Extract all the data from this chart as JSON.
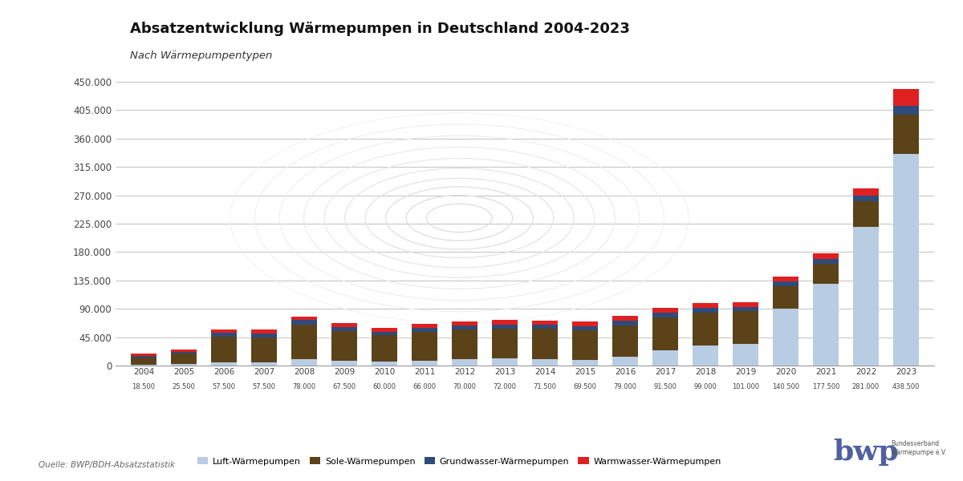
{
  "title": "Absatzentwicklung Wärmepumpen in Deutschland 2004-2023",
  "subtitle": "Nach Wärmepumpentypen",
  "source": "Quelle: BWP/BDH-Absatzstatistik",
  "years": [
    "2004",
    "2005",
    "2006",
    "2007",
    "2008",
    "2009",
    "2010",
    "2011",
    "2012",
    "2013",
    "2014",
    "2015",
    "2016",
    "2017",
    "2018",
    "2019",
    "2020",
    "2021",
    "2022",
    "2023"
  ],
  "totals_labels": [
    "18.500",
    "25.500",
    "57.500",
    "57.500",
    "78.000",
    "67.500",
    "60.000",
    "66.000",
    "70.000",
    "72.000",
    "71.500",
    "69.500",
    "79.000",
    "91.500",
    "99.000",
    "101.000",
    "140.500",
    "177.500",
    "281.000",
    "438.500"
  ],
  "luft": [
    1000,
    2000,
    5000,
    5000,
    10000,
    8000,
    6000,
    8000,
    10000,
    11000,
    10000,
    9000,
    14000,
    24000,
    32000,
    34000,
    90000,
    130000,
    220000,
    336000
  ],
  "sole": [
    12000,
    17000,
    41000,
    40000,
    55000,
    47000,
    42000,
    45000,
    47000,
    47000,
    48000,
    47000,
    50000,
    52000,
    52000,
    52000,
    36000,
    32000,
    40000,
    62000
  ],
  "grundwasser": [
    2500,
    3000,
    6000,
    6000,
    7000,
    6500,
    6000,
    6500,
    6000,
    6500,
    6500,
    6500,
    7000,
    7500,
    7000,
    7000,
    7000,
    7000,
    9000,
    14000
  ],
  "warmwasser": [
    3000,
    3500,
    5500,
    6500,
    6000,
    6000,
    6000,
    6500,
    7000,
    7500,
    7000,
    7000,
    8000,
    8000,
    8000,
    8000,
    7500,
    8500,
    12000,
    26500
  ],
  "color_luft": "#b8cce4",
  "color_sole": "#5c4218",
  "color_grundwasser": "#2e4b7a",
  "color_warmwasser": "#e02020",
  "legend_labels": [
    "Luft-Wärmepumpen",
    "Sole-Wärmepumpen",
    "Grundwasser-Wärmepumpen",
    "Warmwasser-Wärmepumpen"
  ],
  "yticks": [
    0,
    45000,
    90000,
    135000,
    180000,
    225000,
    270000,
    315000,
    360000,
    405000,
    450000
  ],
  "ytick_labels": [
    "0",
    "45.000",
    "90.000",
    "135.000",
    "180.000",
    "225.000",
    "270.000",
    "315.000",
    "360.000",
    "405.000",
    "450.000"
  ],
  "background_color": "#ffffff"
}
